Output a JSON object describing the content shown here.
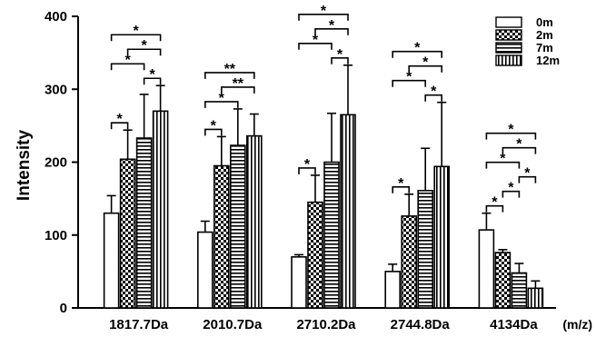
{
  "chart_data": {
    "type": "bar",
    "title": "",
    "xlabel": "",
    "ylabel": "Intensity",
    "x_unit": "(m/z)",
    "ylim": [
      0,
      400
    ],
    "yticks": [
      0,
      100,
      200,
      300,
      400
    ],
    "grid": false,
    "legend_position": "top-right",
    "categories": [
      "1817.7Da",
      "2010.7Da",
      "2710.2Da",
      "2744.8Da",
      "4134Da"
    ],
    "series": [
      {
        "name": "0m",
        "pattern": "solid-white",
        "values": [
          130,
          104,
          70,
          50,
          107
        ],
        "errors": [
          24,
          15,
          3,
          10,
          23
        ]
      },
      {
        "name": "2m",
        "pattern": "checkerboard",
        "values": [
          204,
          195,
          145,
          126,
          76
        ],
        "errors": [
          40,
          40,
          37,
          30,
          4
        ]
      },
      {
        "name": "7m",
        "pattern": "horizontal-stripes",
        "values": [
          233,
          223,
          200,
          161,
          48
        ],
        "errors": [
          60,
          50,
          67,
          58,
          13
        ]
      },
      {
        "name": "12m",
        "pattern": "vertical-stripes",
        "values": [
          270,
          236,
          265,
          194,
          27
        ],
        "errors": [
          35,
          30,
          68,
          88,
          10
        ]
      }
    ],
    "significance": [
      {
        "category": "1817.7Da",
        "pairs": [
          [
            "0m",
            "2m",
            "*"
          ],
          [
            "0m",
            "7m",
            "*"
          ],
          [
            "0m",
            "12m",
            "*"
          ],
          [
            "2m",
            "12m",
            "*"
          ],
          [
            "7m",
            "12m",
            "*"
          ]
        ]
      },
      {
        "category": "2010.7Da",
        "pairs": [
          [
            "0m",
            "2m",
            "*"
          ],
          [
            "0m",
            "7m",
            "*"
          ],
          [
            "0m",
            "12m",
            "**"
          ],
          [
            "2m",
            "12m",
            "**"
          ]
        ]
      },
      {
        "category": "2710.2Da",
        "pairs": [
          [
            "0m",
            "2m",
            "*"
          ],
          [
            "0m",
            "7m",
            "*"
          ],
          [
            "0m",
            "12m",
            "*"
          ],
          [
            "2m",
            "12m",
            "*"
          ],
          [
            "7m",
            "12m",
            "*"
          ]
        ]
      },
      {
        "category": "2744.8Da",
        "pairs": [
          [
            "0m",
            "2m",
            "*"
          ],
          [
            "0m",
            "7m",
            "*"
          ],
          [
            "0m",
            "12m",
            "*"
          ],
          [
            "2m",
            "12m",
            "*"
          ],
          [
            "7m",
            "12m",
            "*"
          ]
        ]
      },
      {
        "category": "4134Da",
        "pairs": [
          [
            "0m",
            "2m",
            "*"
          ],
          [
            "0m",
            "7m",
            "*"
          ],
          [
            "0m",
            "12m",
            "*"
          ],
          [
            "2m",
            "7m",
            "*"
          ],
          [
            "2m",
            "12m",
            "*"
          ],
          [
            "7m",
            "12m",
            "*"
          ]
        ]
      }
    ]
  }
}
